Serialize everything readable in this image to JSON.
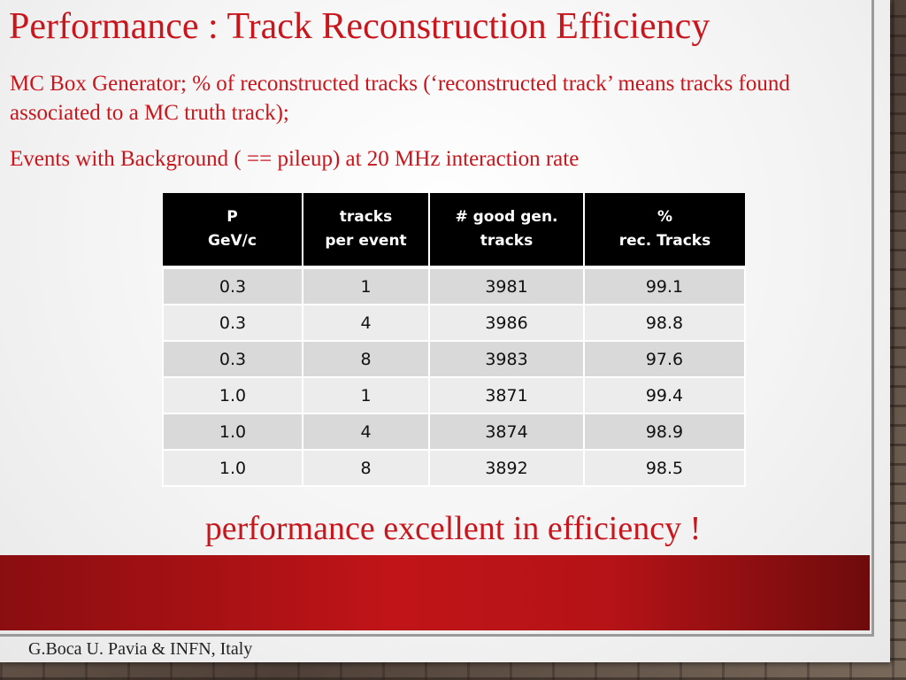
{
  "slide": {
    "title": "Performance : Track Reconstruction Efficiency",
    "description": "MC Box Generator;  % of  reconstructed tracks (‘reconstructed track’ means  tracks found associated to a MC truth track);",
    "background_line": "Events  with  Background  ( == pileup) at 20 MHz interaction rate",
    "conclusion": "performance excellent   in efficiency !",
    "footer": "G.Boca   U. Pavia & INFN, Italy"
  },
  "table": {
    "headers": [
      [
        "P",
        "GeV/c"
      ],
      [
        "tracks",
        "per event"
      ],
      [
        "# good gen.",
        "tracks"
      ],
      [
        "%",
        "rec. Tracks"
      ]
    ],
    "rows": [
      [
        "0.3",
        "1",
        "3981",
        "99.1"
      ],
      [
        "0.3",
        "4",
        "3986",
        "98.8"
      ],
      [
        "0.3",
        "8",
        "3983",
        "97.6"
      ],
      [
        "1.0",
        "1",
        "3871",
        "99.4"
      ],
      [
        "1.0",
        "4",
        "3874",
        "98.9"
      ],
      [
        "1.0",
        "8",
        "3892",
        "98.5"
      ]
    ]
  },
  "colors": {
    "accent_red": "#c8161d",
    "banner_red": "#b51317",
    "header_bg": "#000000"
  }
}
